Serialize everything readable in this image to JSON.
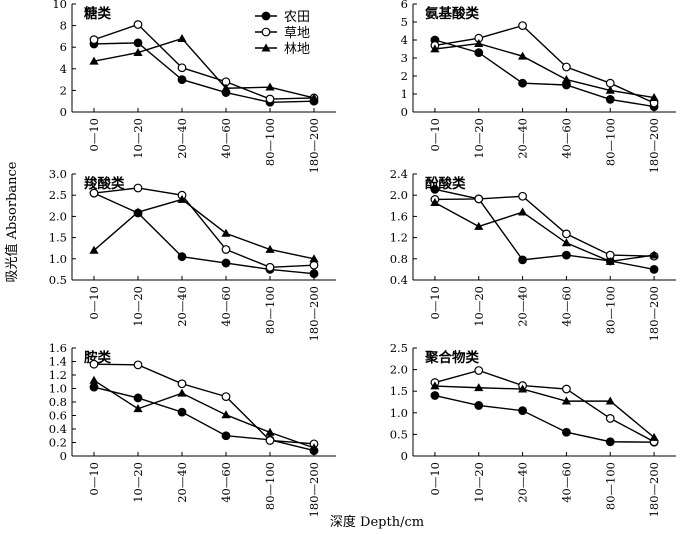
{
  "figure": {
    "ylabel": "吸光值 Absorbance",
    "xlabel": "深度 Depth/cm",
    "legend": {
      "placement": "top-right of first panel",
      "entries": [
        {
          "label": "农田",
          "marker": "circle-filled"
        },
        {
          "label": "草地",
          "marker": "circle-open"
        },
        {
          "label": "林地",
          "marker": "triangle-filled"
        }
      ]
    }
  },
  "chart_data": [
    {
      "type": "line",
      "title": "糖类",
      "categories": [
        "0—10",
        "10—20",
        "20—40",
        "40—60",
        "80—100",
        "180—200"
      ],
      "ylim": [
        0,
        10
      ],
      "yticks": [
        "0",
        "2",
        "4",
        "6",
        "8",
        "10"
      ],
      "series": [
        {
          "name": "农田",
          "marker": "circle-filled",
          "values": [
            6.3,
            6.4,
            3.0,
            1.8,
            0.9,
            1.0
          ]
        },
        {
          "name": "草地",
          "marker": "circle-open",
          "values": [
            6.7,
            8.1,
            4.1,
            2.8,
            1.2,
            1.3
          ]
        },
        {
          "name": "林地",
          "marker": "triangle-filled",
          "values": [
            4.7,
            5.5,
            6.8,
            2.2,
            2.3,
            1.3
          ]
        }
      ]
    },
    {
      "type": "line",
      "title": "氨基酸类",
      "categories": [
        "0—10",
        "10—20",
        "20—40",
        "40—60",
        "80—100",
        "180—200"
      ],
      "ylim": [
        0,
        6
      ],
      "yticks": [
        "0",
        "1",
        "2",
        "3",
        "4",
        "5",
        "6"
      ],
      "series": [
        {
          "name": "农田",
          "marker": "circle-filled",
          "values": [
            4.0,
            3.3,
            1.6,
            1.5,
            0.7,
            0.3
          ]
        },
        {
          "name": "草地",
          "marker": "circle-open",
          "values": [
            3.7,
            4.1,
            4.8,
            2.5,
            1.6,
            0.5
          ]
        },
        {
          "name": "林地",
          "marker": "triangle-filled",
          "values": [
            3.5,
            3.8,
            3.1,
            1.8,
            1.2,
            0.8
          ]
        }
      ]
    },
    {
      "type": "line",
      "title": "羧酸类",
      "categories": [
        "0—10",
        "10—20",
        "20—40",
        "40—60",
        "80—100",
        "180—200"
      ],
      "ylim": [
        0.5,
        3.0
      ],
      "yticks": [
        "0.5",
        "1.0",
        "1.5",
        "2.0",
        "2.5",
        "3.0"
      ],
      "series": [
        {
          "name": "农田",
          "marker": "circle-filled",
          "values": [
            2.55,
            2.08,
            1.05,
            0.9,
            0.75,
            0.65
          ]
        },
        {
          "name": "草地",
          "marker": "circle-open",
          "values": [
            2.55,
            2.67,
            2.5,
            1.22,
            0.8,
            0.85
          ]
        },
        {
          "name": "林地",
          "marker": "triangle-filled",
          "values": [
            1.2,
            2.1,
            2.4,
            1.6,
            1.22,
            1.0
          ]
        }
      ]
    },
    {
      "type": "line",
      "title": "酚酸类",
      "categories": [
        "0—10",
        "10—20",
        "20—40",
        "40—60",
        "80—100",
        "180—200"
      ],
      "ylim": [
        0.4,
        2.4
      ],
      "yticks": [
        "0.4",
        "0.8",
        "1.2",
        "1.6",
        "2.0",
        "2.4"
      ],
      "series": [
        {
          "name": "农田",
          "marker": "circle-filled",
          "values": [
            2.11,
            1.93,
            0.78,
            0.87,
            0.76,
            0.6
          ]
        },
        {
          "name": "草地",
          "marker": "circle-open",
          "values": [
            1.92,
            1.93,
            1.98,
            1.27,
            0.87,
            0.85
          ]
        },
        {
          "name": "林地",
          "marker": "triangle-filled",
          "values": [
            1.86,
            1.41,
            1.68,
            1.1,
            0.75,
            0.87
          ]
        }
      ]
    },
    {
      "type": "line",
      "title": "胺类",
      "categories": [
        "0—10",
        "10—20",
        "20—40",
        "40—60",
        "80—100",
        "180—200"
      ],
      "ylim": [
        0,
        1.6
      ],
      "yticks": [
        "0",
        "0.2",
        "0.4",
        "0.6",
        "0.8",
        "1.0",
        "1.2",
        "1.4",
        "1.6"
      ],
      "series": [
        {
          "name": "农田",
          "marker": "circle-filled",
          "values": [
            1.02,
            0.86,
            0.65,
            0.3,
            0.24,
            0.08
          ]
        },
        {
          "name": "草地",
          "marker": "circle-open",
          "values": [
            1.36,
            1.35,
            1.07,
            0.88,
            0.23,
            0.18
          ]
        },
        {
          "name": "林地",
          "marker": "triangle-filled",
          "values": [
            1.12,
            0.7,
            0.93,
            0.61,
            0.35,
            0.12
          ]
        }
      ]
    },
    {
      "type": "line",
      "title": "聚合物类",
      "categories": [
        "0—10",
        "10—20",
        "20—40",
        "40—60",
        "80—100",
        "180—200"
      ],
      "ylim": [
        0,
        2.5
      ],
      "yticks": [
        "0",
        "0.5",
        "1.0",
        "1.5",
        "2.0",
        "2.5"
      ],
      "series": [
        {
          "name": "农田",
          "marker": "circle-filled",
          "values": [
            1.4,
            1.17,
            1.05,
            0.55,
            0.33,
            0.32
          ]
        },
        {
          "name": "草地",
          "marker": "circle-open",
          "values": [
            1.7,
            1.98,
            1.63,
            1.55,
            0.87,
            0.33
          ]
        },
        {
          "name": "林地",
          "marker": "triangle-filled",
          "values": [
            1.62,
            1.58,
            1.55,
            1.27,
            1.27,
            0.43
          ]
        }
      ]
    }
  ]
}
